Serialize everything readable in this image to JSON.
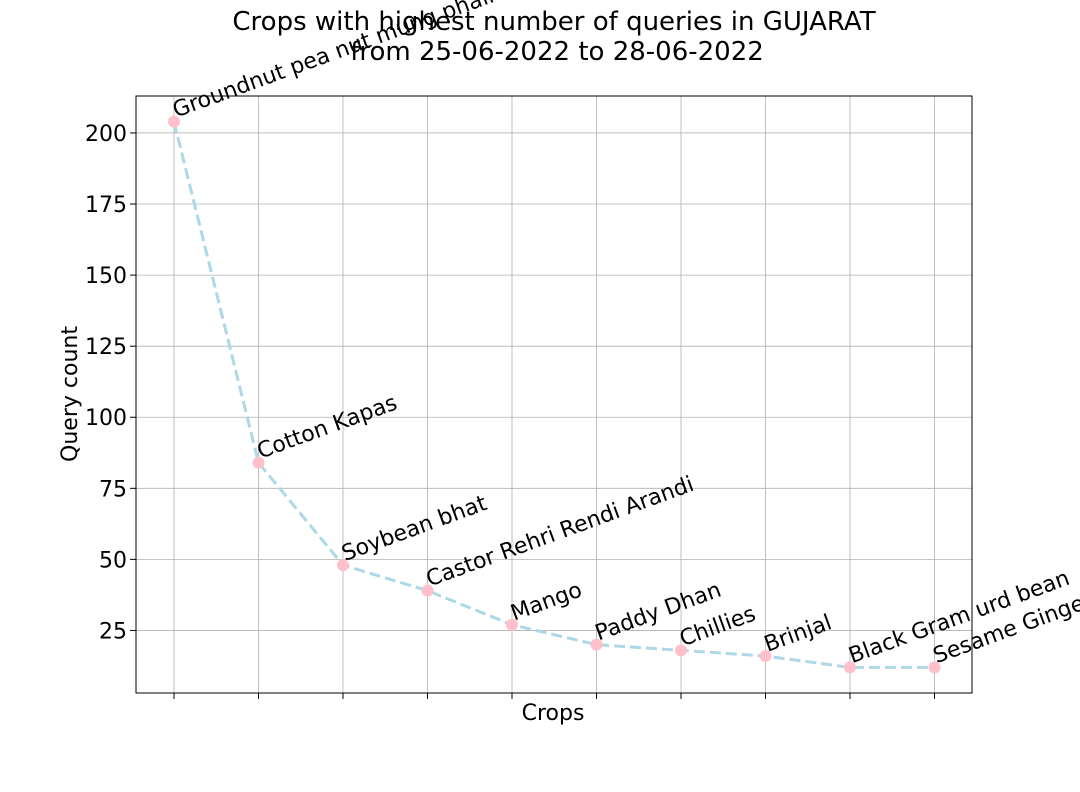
{
  "chart_data": {
    "type": "line",
    "title_lines": [
      "Crops with highest number of queries in GUJARAT",
      "from 25-06-2022 to 28-06-2022"
    ],
    "xlabel": "Crops",
    "ylabel": "Query count",
    "categories": [
      "Groundnut pea nut mung phali",
      "Cotton Kapas",
      "Soybean bhat",
      "Castor Rehri Rendi Arandi",
      "Mango",
      "Paddy Dhan",
      "Chillies",
      "Brinjal",
      "Black Gram urd bean",
      "Sesame Gingelly Til"
    ],
    "values": [
      204,
      84,
      48,
      39,
      27,
      20,
      18,
      16,
      12,
      12
    ],
    "ylim": [
      3,
      213
    ],
    "yticks": [
      25,
      50,
      75,
      100,
      125,
      150,
      175,
      200
    ],
    "grid": true,
    "line_color": "#add8e6",
    "line_style": "dashed",
    "marker_color": "#ffc0cb"
  }
}
